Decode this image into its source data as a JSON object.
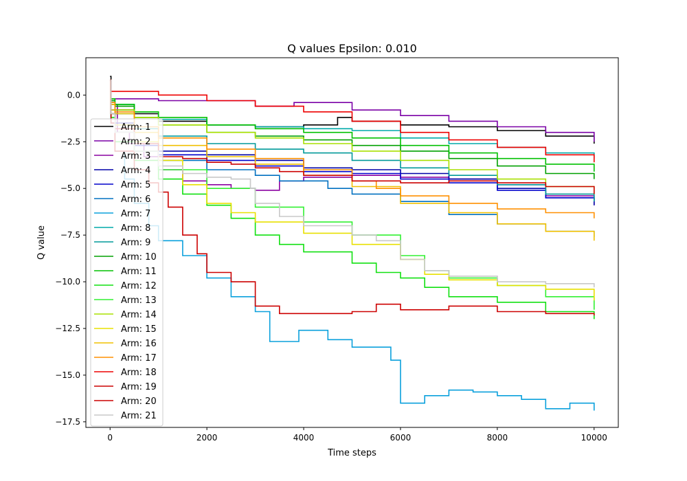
{
  "chart_data": {
    "type": "line",
    "title": "Q values Epsilon: 0.010",
    "xlabel": "Time steps",
    "ylabel": "Q value",
    "xlim": [
      -500,
      10500
    ],
    "ylim": [
      -17.8,
      2.0
    ],
    "xticks": [
      0,
      2000,
      4000,
      6000,
      8000,
      10000
    ],
    "xtick_labels": [
      "0",
      "2000",
      "4000",
      "6000",
      "8000",
      "10000"
    ],
    "yticks": [
      0.0,
      -2.5,
      -5.0,
      -7.5,
      -10.0,
      -12.5,
      -15.0,
      -17.5
    ],
    "ytick_labels": [
      "0.0",
      "−2.5",
      "−5.0",
      "−7.5",
      "−10.0",
      "−12.5",
      "−15.0",
      "−17.5"
    ],
    "grid": false,
    "legend_position": "center-left",
    "series": [
      {
        "name": "Arm: 1",
        "color": "#000000",
        "x": [
          0,
          20,
          100,
          500,
          1000,
          2000,
          3000,
          4000,
          4700,
          5000,
          6000,
          7000,
          8000,
          9000,
          10000
        ],
        "y": [
          1.0,
          -0.4,
          -0.8,
          -1.0,
          -1.4,
          -1.6,
          -1.7,
          -1.6,
          -1.2,
          -1.4,
          -1.6,
          -1.7,
          -1.9,
          -2.2,
          -2.6
        ]
      },
      {
        "name": "Arm: 2",
        "color": "#7a00a6",
        "x": [
          0,
          20,
          100,
          1000,
          2000,
          3000,
          3800,
          5000,
          6000,
          7000,
          8000,
          9000,
          10000
        ],
        "y": [
          0.8,
          -0.2,
          -0.2,
          -0.3,
          -0.3,
          -0.6,
          -0.4,
          -0.8,
          -1.1,
          -1.4,
          -1.7,
          -2.0,
          -2.5
        ]
      },
      {
        "name": "Arm: 3",
        "color": "#8a00a0",
        "x": [
          0,
          20,
          150,
          400,
          700,
          1000,
          1500,
          2000,
          2500,
          3000,
          3500,
          4000,
          5000,
          6000,
          7000,
          8000,
          9000,
          10000
        ],
        "y": [
          0.8,
          -0.5,
          -2.0,
          -2.6,
          -3.3,
          -4.0,
          -4.6,
          -4.8,
          -5.0,
          -5.1,
          -4.6,
          -4.4,
          -4.3,
          -4.4,
          -4.5,
          -4.8,
          -5.4,
          -5.9
        ]
      },
      {
        "name": "Arm: 4",
        "color": "#0000a8",
        "x": [
          0,
          20,
          100,
          500,
          1000,
          2000,
          3000,
          4000,
          5000,
          6000,
          7000,
          8000,
          9000,
          10000
        ],
        "y": [
          0.8,
          -0.8,
          -1.5,
          -2.5,
          -3.0,
          -3.2,
          -3.5,
          -3.9,
          -4.0,
          -4.2,
          -4.5,
          -5.0,
          -5.5,
          -5.9
        ]
      },
      {
        "name": "Arm: 5",
        "color": "#0000cc",
        "x": [
          0,
          20,
          100,
          500,
          1000,
          2000,
          3000,
          4000,
          5000,
          6000,
          7000,
          8000,
          9000,
          10000
        ],
        "y": [
          0.8,
          -0.8,
          -1.6,
          -2.7,
          -3.2,
          -3.5,
          -3.8,
          -4.1,
          -4.2,
          -4.5,
          -4.7,
          -5.1,
          -5.5,
          -5.6
        ]
      },
      {
        "name": "Arm: 6",
        "color": "#0070c0",
        "x": [
          0,
          20,
          100,
          500,
          1000,
          2000,
          3000,
          3500,
          4000,
          4500,
          5000,
          6000,
          7000,
          8000,
          9000,
          10000
        ],
        "y": [
          0.8,
          -1.0,
          -2.0,
          -3.0,
          -3.5,
          -4.0,
          -4.3,
          -4.6,
          -4.6,
          -5.0,
          -5.3,
          -5.7,
          -6.4,
          -6.9,
          -7.3,
          -7.6
        ]
      },
      {
        "name": "Arm: 7",
        "color": "#0aa0dc",
        "x": [
          0,
          20,
          100,
          300,
          500,
          800,
          1000,
          1500,
          2000,
          2500,
          3000,
          3300,
          3900,
          4500,
          5000,
          5500,
          5800,
          6000,
          6500,
          7000,
          7500,
          8000,
          8500,
          9000,
          9500,
          10000
        ],
        "y": [
          0.8,
          -1.5,
          -3.0,
          -4.5,
          -5.8,
          -7.0,
          -7.8,
          -8.6,
          -9.8,
          -10.8,
          -11.6,
          -13.2,
          -12.6,
          -13.1,
          -13.5,
          -13.5,
          -14.2,
          -16.5,
          -16.1,
          -15.8,
          -15.9,
          -16.1,
          -16.3,
          -16.8,
          -16.5,
          -16.9
        ]
      },
      {
        "name": "Arm: 8",
        "color": "#00aaaa",
        "x": [
          0,
          20,
          100,
          500,
          1000,
          2000,
          3000,
          4000,
          5000,
          6000,
          7000,
          8000,
          9000,
          10000
        ],
        "y": [
          0.8,
          -0.3,
          -0.5,
          -0.9,
          -1.3,
          -1.6,
          -1.7,
          -1.8,
          -1.9,
          -2.3,
          -2.6,
          -2.8,
          -3.1,
          -3.4
        ]
      },
      {
        "name": "Arm: 9",
        "color": "#009999",
        "x": [
          0,
          20,
          100,
          500,
          1000,
          2000,
          3000,
          4000,
          5000,
          6000,
          7000,
          8000,
          9000,
          10000
        ],
        "y": [
          0.8,
          -0.4,
          -1.0,
          -1.8,
          -2.2,
          -2.6,
          -2.9,
          -3.1,
          -3.5,
          -3.9,
          -4.3,
          -4.8,
          -5.3,
          -5.7
        ]
      },
      {
        "name": "Arm: 10",
        "color": "#00a000",
        "x": [
          0,
          20,
          100,
          500,
          1000,
          2000,
          3000,
          4000,
          5000,
          6000,
          7000,
          8000,
          9000,
          10000
        ],
        "y": [
          0.8,
          -0.3,
          -0.6,
          -1.2,
          -1.6,
          -2.0,
          -2.2,
          -2.4,
          -2.7,
          -3.0,
          -3.4,
          -3.8,
          -4.2,
          -4.5
        ]
      },
      {
        "name": "Arm: 11",
        "color": "#00c000",
        "x": [
          0,
          20,
          100,
          500,
          1000,
          2000,
          3000,
          4000,
          5000,
          6000,
          7000,
          8000,
          9000,
          10000
        ],
        "y": [
          0.8,
          -0.2,
          -0.5,
          -0.9,
          -1.2,
          -1.6,
          -1.8,
          -2.0,
          -2.3,
          -2.7,
          -3.1,
          -3.4,
          -3.7,
          -4.1
        ]
      },
      {
        "name": "Arm: 12",
        "color": "#10e010",
        "x": [
          0,
          20,
          100,
          500,
          1000,
          1500,
          2000,
          2500,
          3000,
          3500,
          4000,
          5000,
          5500,
          6000,
          6500,
          7000,
          8000,
          9000,
          10000
        ],
        "y": [
          0.8,
          -1.2,
          -2.5,
          -3.5,
          -4.5,
          -5.3,
          -5.9,
          -6.6,
          -7.5,
          -8.0,
          -8.4,
          -9.0,
          -9.5,
          -9.8,
          -10.3,
          -10.8,
          -11.1,
          -11.6,
          -12.0
        ]
      },
      {
        "name": "Arm: 13",
        "color": "#30f030",
        "x": [
          0,
          20,
          100,
          500,
          1000,
          2000,
          3000,
          4000,
          5000,
          6000,
          6500,
          7000,
          8000,
          9000,
          10000
        ],
        "y": [
          0.8,
          -1.0,
          -2.0,
          -3.0,
          -4.0,
          -5.0,
          -6.0,
          -6.8,
          -7.5,
          -8.6,
          -9.4,
          -9.8,
          -10.2,
          -10.8,
          -11.5
        ]
      },
      {
        "name": "Arm: 14",
        "color": "#a8e000",
        "x": [
          0,
          20,
          100,
          500,
          1000,
          2000,
          3000,
          4000,
          5000,
          6000,
          7000,
          8000,
          9000,
          10000
        ],
        "y": [
          0.8,
          -0.5,
          -0.8,
          -1.2,
          -1.6,
          -2.0,
          -2.3,
          -2.6,
          -3.0,
          -3.5,
          -4.0,
          -4.5,
          -4.9,
          -5.3
        ]
      },
      {
        "name": "Arm: 15",
        "color": "#e8e000",
        "x": [
          0,
          20,
          100,
          500,
          1000,
          1500,
          2000,
          2500,
          3000,
          4000,
          5000,
          6000,
          6500,
          7000,
          8000,
          9000,
          10000
        ],
        "y": [
          0.8,
          -0.8,
          -1.6,
          -2.5,
          -3.5,
          -4.8,
          -5.8,
          -6.3,
          -6.8,
          -7.4,
          -8.0,
          -8.8,
          -9.6,
          -9.9,
          -10.2,
          -10.4,
          -11.0
        ]
      },
      {
        "name": "Arm: 16",
        "color": "#f0c000",
        "x": [
          0,
          20,
          100,
          500,
          1000,
          2000,
          3000,
          4000,
          5000,
          6000,
          7000,
          8000,
          9000,
          10000
        ],
        "y": [
          0.8,
          -0.5,
          -1.0,
          -2.0,
          -2.7,
          -3.3,
          -3.7,
          -4.3,
          -4.9,
          -5.8,
          -6.3,
          -6.9,
          -7.3,
          -7.8
        ]
      },
      {
        "name": "Arm: 17",
        "color": "#ff9000",
        "x": [
          0,
          20,
          100,
          500,
          1000,
          2000,
          3000,
          4000,
          5000,
          5500,
          6000,
          7000,
          8000,
          9000,
          10000
        ],
        "y": [
          0.8,
          -0.4,
          -0.9,
          -1.7,
          -2.3,
          -2.9,
          -3.4,
          -4.0,
          -4.6,
          -5.0,
          -5.4,
          -5.8,
          -6.1,
          -6.3,
          -6.6
        ]
      },
      {
        "name": "Arm: 18",
        "color": "#ee0000",
        "x": [
          0,
          20,
          100,
          500,
          1000,
          2000,
          3000,
          4000,
          5000,
          6000,
          7000,
          8000,
          9000,
          10000
        ],
        "y": [
          0.8,
          0.2,
          0.2,
          0.2,
          0.0,
          -0.3,
          -0.6,
          -0.9,
          -1.4,
          -2.0,
          -2.4,
          -2.8,
          -3.2,
          -3.6
        ]
      },
      {
        "name": "Arm: 19",
        "color": "#cc0000",
        "x": [
          0,
          20,
          100,
          500,
          1000,
          1500,
          2000,
          2500,
          3000,
          3500,
          4000,
          5000,
          6000,
          7000,
          8000,
          9000,
          10000
        ],
        "y": [
          0.8,
          -1.0,
          -1.8,
          -2.6,
          -3.3,
          -3.4,
          -3.6,
          -3.7,
          -3.9,
          -4.1,
          -4.3,
          -4.6,
          -4.7,
          -4.6,
          -4.7,
          -4.9,
          -5.3
        ]
      },
      {
        "name": "Arm: 20",
        "color": "#cc0000",
        "x": [
          0,
          20,
          100,
          500,
          800,
          1000,
          1200,
          1500,
          1800,
          2000,
          2500,
          3000,
          3500,
          4000,
          5000,
          5500,
          6000,
          6500,
          7000,
          8000,
          9000,
          10000
        ],
        "y": [
          0.8,
          -1.5,
          -3.0,
          -4.0,
          -4.7,
          -5.2,
          -6.0,
          -7.5,
          -8.5,
          -9.5,
          -10.0,
          -11.3,
          -11.7,
          -11.7,
          -11.6,
          -11.2,
          -11.5,
          -11.5,
          -11.3,
          -11.6,
          -11.7,
          -11.8
        ]
      },
      {
        "name": "Arm: 21",
        "color": "#c8c8c8",
        "x": [
          0,
          20,
          100,
          500,
          1000,
          1500,
          2000,
          2500,
          2900,
          3000,
          3500,
          4000,
          5000,
          5500,
          6000,
          6500,
          7000,
          8000,
          9000,
          10000
        ],
        "y": [
          0.8,
          -1.0,
          -2.0,
          -3.0,
          -3.8,
          -4.2,
          -4.4,
          -4.5,
          -5.0,
          -5.8,
          -6.5,
          -7.0,
          -7.5,
          -7.8,
          -8.8,
          -9.4,
          -9.7,
          -10.0,
          -10.1,
          -10.3
        ]
      }
    ]
  }
}
